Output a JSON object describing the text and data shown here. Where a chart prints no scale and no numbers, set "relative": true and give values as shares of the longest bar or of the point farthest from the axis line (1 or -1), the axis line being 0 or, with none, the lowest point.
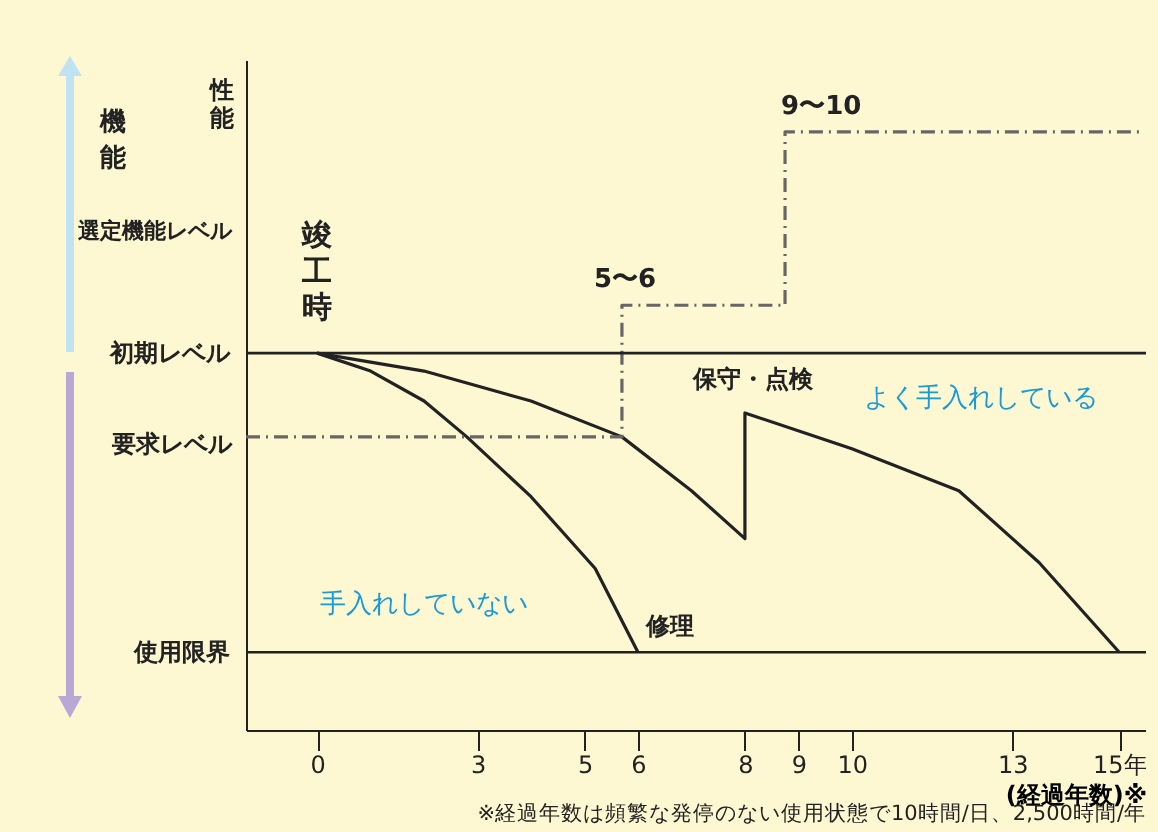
{
  "chart_data": {
    "type": "line",
    "relative": true,
    "ylabel": "性能",
    "xlabel": "(経過年数)※",
    "xlim": [
      -1.33,
      15.5
    ],
    "xticks": [
      0,
      3,
      5,
      6,
      8,
      9,
      10,
      13,
      {
        "value": 15,
        "label": "15年"
      }
    ],
    "series": [
      {
        "color": "#222222",
        "line_style": "solid",
        "x": [
          0,
          1,
          2,
          2.8,
          4,
          5.2,
          6
        ],
        "values": [
          0.63,
          0.6,
          0.55,
          0.49,
          0.39,
          0.27,
          0.13
        ]
      },
      {
        "color": "#222222",
        "line_style": "solid",
        "x": [
          0,
          2,
          4,
          5.7,
          7,
          8,
          8,
          10,
          12,
          13.5,
          15
        ],
        "values": [
          0.63,
          0.6,
          0.55,
          0.49,
          0.4,
          0.32,
          0.53,
          0.47,
          0.4,
          0.28,
          0.13
        ]
      },
      {
        "color": "#666666",
        "line_style": "dashed",
        "x": [
          -1.33,
          5.7,
          5.7,
          8.75,
          8.75,
          15.4
        ],
        "values": [
          0.49,
          0.49,
          0.71,
          0.71,
          1,
          1
        ]
      }
    ],
    "ref_lines": [
      {
        "axis": "y",
        "value": 0.63,
        "label": "初期レベル",
        "color": "#222222"
      },
      {
        "axis": "y",
        "value": 0.13,
        "label": "使用限界",
        "color": "#222222"
      }
    ],
    "annotations": [
      "要求レベル",
      "選定機能レベル",
      {
        "text": "竣工時",
        "x": 0,
        "y": 0.63
      },
      {
        "text": "5〜6",
        "x": 5.7,
        "y": 0.71
      },
      {
        "text": "9〜10",
        "x": 8.75,
        "y": 1
      },
      {
        "text": "保守・点検",
        "x": 8,
        "y": 0.53
      },
      {
        "text": "修理",
        "x": 6,
        "y": 0.13
      },
      "手入れしていない",
      "よく手入れしている",
      "機能",
      "※経過年数は頻繁な発停のない使用状態で10時間/日、2,500時間/年"
    ]
  }
}
